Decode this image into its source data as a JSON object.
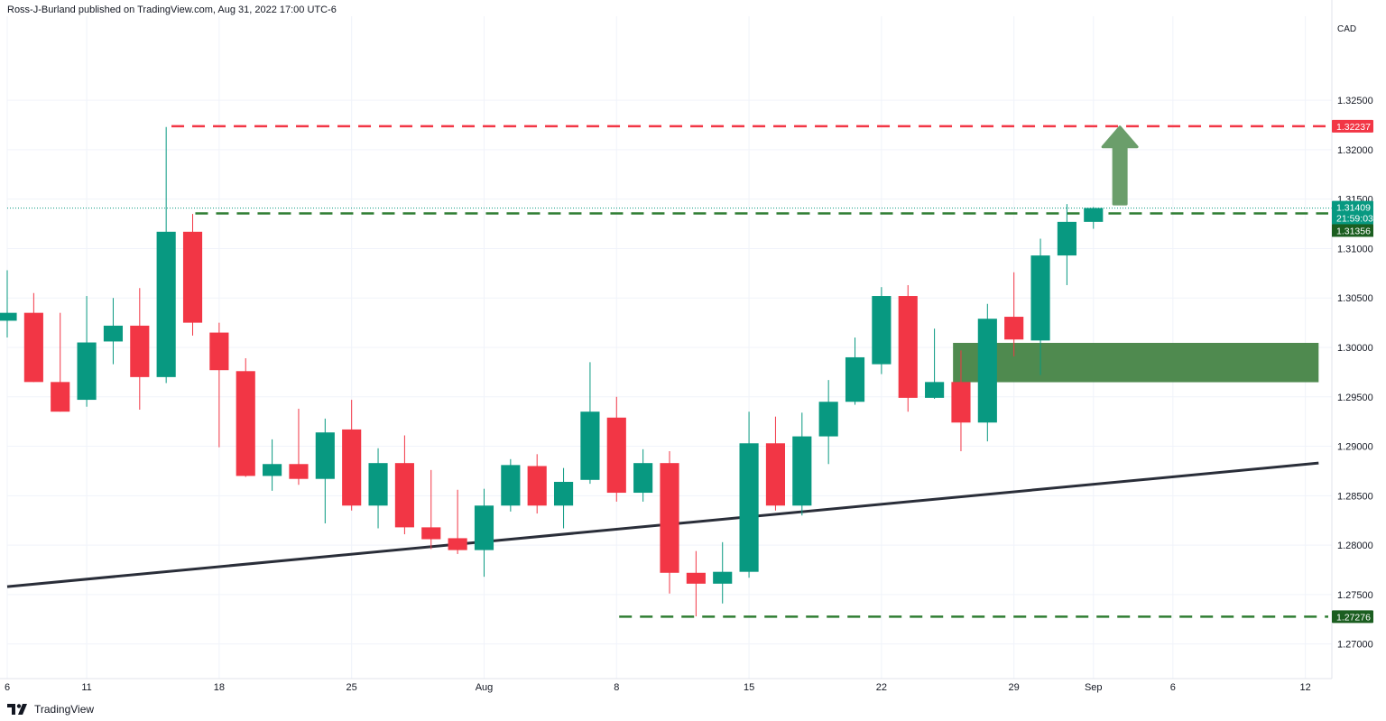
{
  "header": {
    "publisher_text": "Ross-J-Burland published on TradingView.com, Aug 31, 2022 17:00 UTC-6",
    "currency": "CAD"
  },
  "footer": {
    "logo_text": "TradingView",
    "logo_icon": "tradingview-logo-icon"
  },
  "colors": {
    "up": "#089981",
    "down": "#f23645",
    "resistance_line": "#f23645",
    "support_line": "#2e7d32",
    "trendline": "#2a2e39",
    "zone": "#4f8a4f",
    "arrow": "#6b9e6b",
    "grid": "#f0f3fa"
  },
  "price_tags": {
    "resistance": "1.32237",
    "last_price": "1.31409",
    "countdown": "21:59:03",
    "support_upper": "1.31356",
    "support_lower": "1.27276"
  },
  "chart_data": {
    "type": "candlestick",
    "instrument_currency": "CAD",
    "x_axis_labels": [
      "6",
      "11",
      "18",
      "25",
      "Aug",
      "8",
      "15",
      "22",
      "29",
      "Sep",
      "6",
      "12"
    ],
    "y_axis_labels": [
      "1.32500",
      "1.32000",
      "1.31500",
      "1.31000",
      "1.30500",
      "1.30000",
      "1.29500",
      "1.29000",
      "1.28500",
      "1.28000",
      "1.27500",
      "1.27000"
    ],
    "y_range": [
      1.2665,
      1.3335
    ],
    "x_range": [
      0,
      50
    ],
    "grid": true,
    "candles": [
      {
        "d": 0,
        "o": 1.3027,
        "h": 1.3078,
        "l": 1.301,
        "c": 1.3035
      },
      {
        "d": 1,
        "o": 1.3035,
        "h": 1.3055,
        "l": 1.2965,
        "c": 1.2965
      },
      {
        "d": 2,
        "o": 1.2965,
        "h": 1.3035,
        "l": 1.2935,
        "c": 1.2935
      },
      {
        "d": 3,
        "o": 1.2947,
        "h": 1.3052,
        "l": 1.294,
        "c": 1.3005
      },
      {
        "d": 4,
        "o": 1.3006,
        "h": 1.305,
        "l": 1.2983,
        "c": 1.3022
      },
      {
        "d": 5,
        "o": 1.3022,
        "h": 1.306,
        "l": 1.2937,
        "c": 1.297
      },
      {
        "d": 6,
        "o": 1.297,
        "h": 1.3223,
        "l": 1.2964,
        "c": 1.3117
      },
      {
        "d": 7,
        "o": 1.3117,
        "h": 1.3135,
        "l": 1.3012,
        "c": 1.3025
      },
      {
        "d": 8,
        "o": 1.3015,
        "h": 1.3025,
        "l": 1.2899,
        "c": 1.2977
      },
      {
        "d": 9,
        "o": 1.2976,
        "h": 1.2989,
        "l": 1.2869,
        "c": 1.287
      },
      {
        "d": 10,
        "o": 1.287,
        "h": 1.2907,
        "l": 1.2855,
        "c": 1.2882
      },
      {
        "d": 11,
        "o": 1.2882,
        "h": 1.2938,
        "l": 1.2861,
        "c": 1.2867
      },
      {
        "d": 12,
        "o": 1.2867,
        "h": 1.2928,
        "l": 1.2822,
        "c": 1.2914
      },
      {
        "d": 13,
        "o": 1.2917,
        "h": 1.2947,
        "l": 1.2835,
        "c": 1.284
      },
      {
        "d": 14,
        "o": 1.284,
        "h": 1.2898,
        "l": 1.2817,
        "c": 1.2883
      },
      {
        "d": 15,
        "o": 1.2883,
        "h": 1.2911,
        "l": 1.2811,
        "c": 1.2818
      },
      {
        "d": 16,
        "o": 1.2818,
        "h": 1.2876,
        "l": 1.2796,
        "c": 1.2806
      },
      {
        "d": 17,
        "o": 1.2807,
        "h": 1.2856,
        "l": 1.2791,
        "c": 1.2795
      },
      {
        "d": 18,
        "o": 1.2795,
        "h": 1.2857,
        "l": 1.2768,
        "c": 1.284
      },
      {
        "d": 19,
        "o": 1.284,
        "h": 1.2887,
        "l": 1.2834,
        "c": 1.2881
      },
      {
        "d": 20,
        "o": 1.288,
        "h": 1.2892,
        "l": 1.2832,
        "c": 1.284
      },
      {
        "d": 21,
        "o": 1.284,
        "h": 1.2878,
        "l": 1.2817,
        "c": 1.2864
      },
      {
        "d": 22,
        "o": 1.2866,
        "h": 1.2985,
        "l": 1.2862,
        "c": 1.2935
      },
      {
        "d": 23,
        "o": 1.2929,
        "h": 1.295,
        "l": 1.2844,
        "c": 1.2853
      },
      {
        "d": 24,
        "o": 1.2853,
        "h": 1.2897,
        "l": 1.2844,
        "c": 1.2883
      },
      {
        "d": 25,
        "o": 1.2883,
        "h": 1.2895,
        "l": 1.2751,
        "c": 1.2772
      },
      {
        "d": 26,
        "o": 1.2772,
        "h": 1.2794,
        "l": 1.2728,
        "c": 1.2761
      },
      {
        "d": 27,
        "o": 1.2761,
        "h": 1.2803,
        "l": 1.2741,
        "c": 1.2773
      },
      {
        "d": 28,
        "o": 1.2773,
        "h": 1.2935,
        "l": 1.2767,
        "c": 1.2903
      },
      {
        "d": 29,
        "o": 1.2903,
        "h": 1.293,
        "l": 1.2835,
        "c": 1.284
      },
      {
        "d": 30,
        "o": 1.284,
        "h": 1.2934,
        "l": 1.283,
        "c": 1.291
      },
      {
        "d": 31,
        "o": 1.291,
        "h": 1.2967,
        "l": 1.2882,
        "c": 1.2945
      },
      {
        "d": 32,
        "o": 1.2945,
        "h": 1.301,
        "l": 1.2942,
        "c": 1.299
      },
      {
        "d": 33,
        "o": 1.2983,
        "h": 1.3061,
        "l": 1.2973,
        "c": 1.3052
      },
      {
        "d": 34,
        "o": 1.3052,
        "h": 1.3063,
        "l": 1.2935,
        "c": 1.2949
      },
      {
        "d": 35,
        "o": 1.2949,
        "h": 1.3019,
        "l": 1.2948,
        "c": 1.2965
      },
      {
        "d": 36,
        "o": 1.2965,
        "h": 1.2997,
        "l": 1.2895,
        "c": 1.2924
      },
      {
        "d": 37,
        "o": 1.2924,
        "h": 1.3044,
        "l": 1.2905,
        "c": 1.3029
      },
      {
        "d": 38,
        "o": 1.3031,
        "h": 1.3076,
        "l": 1.2991,
        "c": 1.3008
      },
      {
        "d": 39,
        "o": 1.3007,
        "h": 1.311,
        "l": 1.2972,
        "c": 1.3093
      },
      {
        "d": 40,
        "o": 1.3093,
        "h": 1.3145,
        "l": 1.3063,
        "c": 1.3127
      },
      {
        "d": 41,
        "o": 1.3127,
        "h": 1.3142,
        "l": 1.312,
        "c": 1.3141
      }
    ],
    "trendline": {
      "x1": 0,
      "y1": 1.2758,
      "x2": 49.5,
      "y2": 1.2883
    },
    "levels": [
      {
        "name": "resistance",
        "value": 1.32237,
        "from_day": 6.2,
        "style": "dashed"
      },
      {
        "name": "support_upper",
        "value": 1.31356,
        "from_day": 7.1,
        "style": "dashed"
      },
      {
        "name": "support_lower",
        "value": 1.27276,
        "from_day": 23.1,
        "style": "dashed"
      }
    ],
    "last_price_level": 1.31409,
    "zone": {
      "from_day": 35.7,
      "to_day": 49.5,
      "top": 1.30046,
      "bottom": 1.29648
    },
    "arrow": {
      "day": 42.0,
      "from": 1.3145,
      "to": 1.3223
    },
    "x_label_days": [
      0,
      3,
      8,
      13,
      18,
      23,
      28,
      33,
      38,
      41,
      44,
      49
    ]
  }
}
